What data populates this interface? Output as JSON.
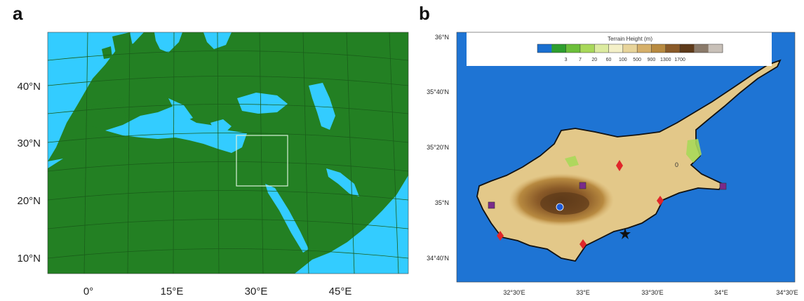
{
  "panel_a": {
    "label": "a",
    "lat_labels": [
      "40°N",
      "30°N",
      "20°N",
      "10°N"
    ],
    "lon_labels": [
      "0°",
      "15°E",
      "30°E",
      "45°E"
    ],
    "colors": {
      "land": "#238023",
      "sea": "#33ccff",
      "grid": "#1a5e1a",
      "box": "#d8f0d8"
    }
  },
  "panel_b": {
    "label": "b",
    "lat_labels": [
      "36°N",
      "35°40'N",
      "35°20'N",
      "35°N",
      "34°40'N"
    ],
    "lon_labels": [
      "32°30'E",
      "33°E",
      "33°30'E",
      "34°E",
      "34°30'E"
    ],
    "legend": {
      "title": "Terrain Height (m)",
      "ticks": [
        "3",
        "7",
        "20",
        "60",
        "100",
        "500",
        "900",
        "1300",
        "1700"
      ],
      "colors": [
        "#1a6fd0",
        "#2e9e2e",
        "#6cbf3a",
        "#a8d85a",
        "#dceba0",
        "#f4f0c8",
        "#e8d49a",
        "#d6b06a",
        "#b88a40",
        "#8a5a28",
        "#5e3a1a",
        "#8a7a6a",
        "#c8c0b8"
      ]
    },
    "sea_label": "0",
    "colors": {
      "sea": "#1e74d4",
      "land": "#e3c889",
      "mountain": "#7a4e22"
    }
  }
}
